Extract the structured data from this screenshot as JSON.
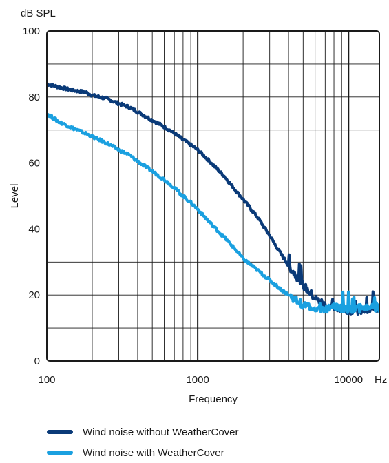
{
  "chart_data": {
    "type": "line",
    "xscale": "log",
    "xlim": [
      100,
      16000
    ],
    "ylim": [
      0,
      100
    ],
    "yticks": [
      0,
      20,
      40,
      60,
      80,
      100
    ],
    "xticks": [
      100,
      1000,
      10000
    ],
    "xtick_labels": [
      "100",
      "1000",
      "10000"
    ],
    "xunit": "Hz",
    "yunit": "dB SPL",
    "xlabel": "Frequency",
    "ylabel": "Level",
    "grid": true,
    "legend_position": "bottom",
    "series": [
      {
        "name": "Wind noise without WeatherCover",
        "color": "#0a3a78",
        "x": [
          100,
          120,
          150,
          180,
          200,
          250,
          300,
          350,
          400,
          500,
          600,
          700,
          800,
          900,
          1000,
          1200,
          1500,
          1800,
          2000,
          2500,
          3000,
          3500,
          4000,
          5000,
          6000,
          7000,
          8000,
          9000,
          10000,
          12000,
          14000,
          16000
        ],
        "y": [
          84,
          83,
          82,
          81.5,
          80.5,
          79.5,
          78,
          77,
          75.5,
          73,
          71,
          69,
          67,
          65.5,
          64,
          60.5,
          56,
          51.5,
          49,
          43.5,
          38,
          33,
          29,
          23,
          19,
          17,
          16,
          16,
          15.5,
          15,
          15.5,
          16
        ]
      },
      {
        "name": "Wind noise with WeatherCover",
        "color": "#1aa0e0",
        "x": [
          100,
          120,
          150,
          180,
          200,
          250,
          300,
          350,
          400,
          500,
          600,
          700,
          800,
          900,
          1000,
          1200,
          1500,
          1800,
          2000,
          2500,
          3000,
          3500,
          4000,
          5000,
          6000,
          7000,
          8000,
          9000,
          10000,
          12000,
          14000,
          16000
        ],
        "y": [
          75,
          72.5,
          70.5,
          69,
          68,
          66,
          64,
          62.5,
          60.5,
          57.5,
          55,
          52.5,
          50,
          48,
          46,
          42,
          37.5,
          33.5,
          31,
          27.5,
          24.5,
          22,
          20,
          17,
          16,
          15.5,
          16.5,
          16,
          15.5,
          16,
          16.5,
          16
        ]
      }
    ]
  }
}
